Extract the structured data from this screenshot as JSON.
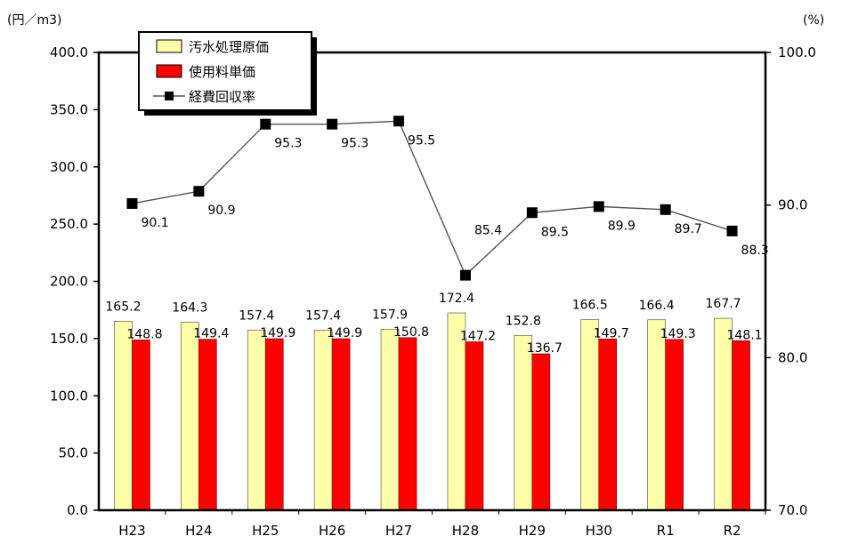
{
  "chart_data": {
    "type": "bar",
    "categories": [
      "H23",
      "H24",
      "H25",
      "H26",
      "H27",
      "H28",
      "H29",
      "H30",
      "R1",
      "R2"
    ],
    "series": [
      {
        "name": "汚水処理原価",
        "kind": "bar",
        "axis": "left",
        "color": "#FFFFAA",
        "values": [
          165.2,
          164.3,
          157.4,
          157.4,
          157.9,
          172.4,
          152.8,
          166.5,
          166.4,
          167.7
        ],
        "labels": [
          "165.2",
          "164.3",
          "157.4",
          "157.4",
          "157.9",
          "172.4",
          "152.8",
          "166.5",
          "166.4",
          "167.7"
        ]
      },
      {
        "name": "使用料単価",
        "kind": "bar",
        "axis": "left",
        "color": "#FF0000",
        "values": [
          148.8,
          149.4,
          149.9,
          149.9,
          150.8,
          147.2,
          136.7,
          149.7,
          149.3,
          148.1
        ],
        "labels": [
          "148.8",
          "149.4",
          "149.9",
          "149.9",
          "150.8",
          "147.2",
          "136.7",
          "149.7",
          "149.3",
          "148.1"
        ]
      },
      {
        "name": "経費回収率",
        "kind": "line",
        "axis": "right",
        "color": "#000000",
        "values": [
          90.1,
          90.9,
          95.3,
          95.3,
          95.5,
          85.4,
          89.5,
          89.9,
          89.7,
          88.3
        ],
        "labels": [
          "90.1",
          "90.9",
          "95.3",
          "95.3",
          "95.5",
          "85.4",
          "89.5",
          "89.9",
          "89.7",
          "88.3"
        ]
      }
    ],
    "y_left": {
      "unit": "(円／m3)",
      "min": 0,
      "max": 400,
      "ticks": [
        0,
        50,
        100,
        150,
        200,
        250,
        300,
        350,
        400
      ],
      "tick_labels": [
        "0.0",
        "50.0",
        "100.0",
        "150.0",
        "200.0",
        "250.0",
        "300.0",
        "350.0",
        "400.0"
      ]
    },
    "y_right": {
      "unit": "(%)",
      "min": 70,
      "max": 100,
      "ticks": [
        70,
        80,
        90,
        100
      ],
      "tick_labels": [
        "70.0",
        "80.0",
        "90.0",
        "100.0"
      ]
    },
    "grid": false,
    "legend": "top-left"
  }
}
